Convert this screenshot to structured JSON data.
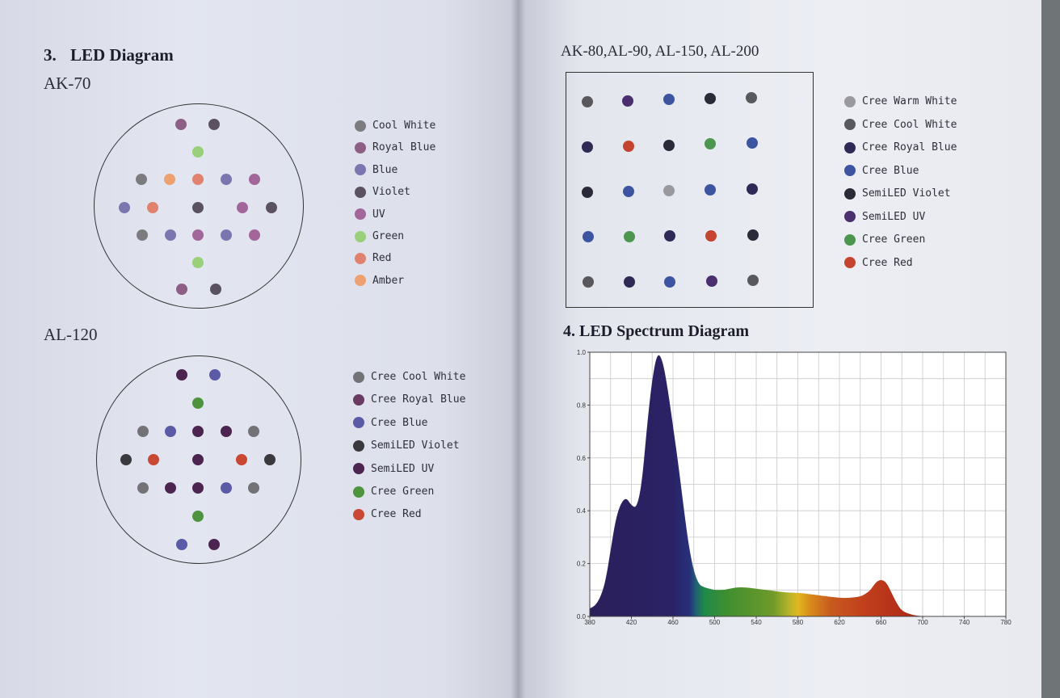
{
  "left": {
    "section_number": "3.",
    "section_title": "LED Diagram",
    "ak70": {
      "model": "AK-70",
      "legend": [
        {
          "label": "Cool White",
          "color": "#7c7c80"
        },
        {
          "label": "Royal Blue",
          "color": "#8d5f84"
        },
        {
          "label": "Blue",
          "color": "#7b76b0"
        },
        {
          "label": "Violet",
          "color": "#5a5260"
        },
        {
          "label": "UV",
          "color": "#a3669a"
        },
        {
          "label": "Green",
          "color": "#9bd07a"
        },
        {
          "label": "Red",
          "color": "#e0826e"
        },
        {
          "label": "Amber",
          "color": "#eda170"
        }
      ]
    },
    "al120": {
      "model": "AL-120",
      "legend": [
        {
          "label": "Cree Cool White",
          "color": "#727277"
        },
        {
          "label": "Cree Royal Blue",
          "color": "#6a3b62"
        },
        {
          "label": "Cree Blue",
          "color": "#5a5aa6"
        },
        {
          "label": "SemiLED Violet",
          "color": "#3a3a3e"
        },
        {
          "label": "SemiLED UV",
          "color": "#4c2450"
        },
        {
          "label": "Cree Green",
          "color": "#4e943e"
        },
        {
          "label": "Cree Red",
          "color": "#c84834"
        }
      ]
    }
  },
  "right": {
    "grid_model": {
      "model": "AK-80,AL-90, AL-150, AL-200",
      "legend": [
        {
          "label": "Cree Warm White",
          "color": "#9a9a9e"
        },
        {
          "label": "Cree Cool White",
          "color": "#59595d"
        },
        {
          "label": "Cree Royal Blue",
          "color": "#2e2a55"
        },
        {
          "label": "Cree Blue",
          "color": "#3d55a0"
        },
        {
          "label": "SemiLED Violet",
          "color": "#2a2a38"
        },
        {
          "label": "SemiLED UV",
          "color": "#4b2f6e"
        },
        {
          "label": "Cree Green",
          "color": "#4d9650"
        },
        {
          "label": "Cree Red",
          "color": "#c4442f"
        }
      ]
    },
    "spectrum": {
      "section_title": "4. LED Spectrum Diagram",
      "chart_data": {
        "type": "area",
        "title": "",
        "xlabel": "",
        "ylabel": "",
        "xlim": [
          380,
          780
        ],
        "ylim": [
          0,
          1.0
        ],
        "x_ticks": [
          "380",
          "420",
          "460",
          "500",
          "540",
          "580",
          "620",
          "660",
          "700",
          "740",
          "780"
        ],
        "y_ticks": [
          "0.0",
          "0.2",
          "0.4",
          "0.6",
          "0.8",
          "1.0"
        ],
        "grid": true,
        "x": [
          380,
          385,
          390,
          395,
          400,
          405,
          410,
          415,
          420,
          425,
          430,
          435,
          440,
          445,
          450,
          455,
          460,
          465,
          470,
          475,
          480,
          485,
          490,
          495,
          500,
          510,
          520,
          530,
          540,
          550,
          560,
          570,
          580,
          590,
          600,
          610,
          620,
          630,
          640,
          645,
          650,
          655,
          660,
          665,
          670,
          675,
          680,
          690,
          700,
          720,
          740,
          760,
          780
        ],
        "y": [
          0.03,
          0.04,
          0.07,
          0.13,
          0.25,
          0.37,
          0.43,
          0.45,
          0.42,
          0.41,
          0.5,
          0.72,
          0.9,
          1.0,
          0.97,
          0.86,
          0.72,
          0.58,
          0.42,
          0.27,
          0.17,
          0.12,
          0.11,
          0.105,
          0.1,
          0.1,
          0.11,
          0.11,
          0.105,
          0.1,
          0.095,
          0.09,
          0.09,
          0.085,
          0.08,
          0.075,
          0.07,
          0.07,
          0.075,
          0.085,
          0.1,
          0.13,
          0.14,
          0.13,
          0.09,
          0.05,
          0.02,
          0.005,
          0.0,
          0.0,
          0.0,
          0.0,
          0.0
        ]
      }
    }
  }
}
